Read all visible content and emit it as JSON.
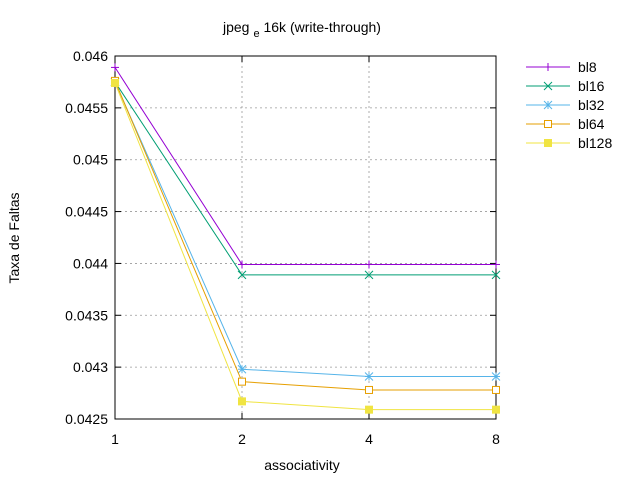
{
  "chart_data": {
    "type": "line",
    "title": "jpeg",
    "title_subscript": "e",
    "title_rest": " 16k (write-through)",
    "xlabel": "associativity",
    "ylabel": "Taxa de Faltas",
    "x": [
      1,
      2,
      4,
      8
    ],
    "x_ticks": [
      "1",
      "2",
      "4",
      "8"
    ],
    "x_scale": "log2",
    "xlim": [
      1,
      8
    ],
    "ylim": [
      0.0425,
      0.046
    ],
    "y_ticks": [
      "0.0425",
      "0.043",
      "0.0435",
      "0.044",
      "0.0445",
      "0.045",
      "0.0455",
      "0.046"
    ],
    "grid": true,
    "legend_position": "top-right outside",
    "series": [
      {
        "name": "bl8",
        "color": "#9400d3",
        "marker": "plus",
        "values": [
          0.04589,
          0.04399,
          0.04399,
          0.04399
        ]
      },
      {
        "name": "bl16",
        "color": "#009e73",
        "marker": "cross",
        "values": [
          0.04575,
          0.04389,
          0.04389,
          0.04389
        ]
      },
      {
        "name": "bl32",
        "color": "#56b4e9",
        "marker": "star",
        "values": [
          0.04575,
          0.04298,
          0.04291,
          0.04291
        ]
      },
      {
        "name": "bl64",
        "color": "#e69f00",
        "marker": "open-square",
        "values": [
          0.04576,
          0.04286,
          0.04278,
          0.04278
        ]
      },
      {
        "name": "bl128",
        "color": "#f0e442",
        "marker": "filled-square",
        "values": [
          0.04574,
          0.04267,
          0.04259,
          0.04259
        ]
      }
    ]
  }
}
